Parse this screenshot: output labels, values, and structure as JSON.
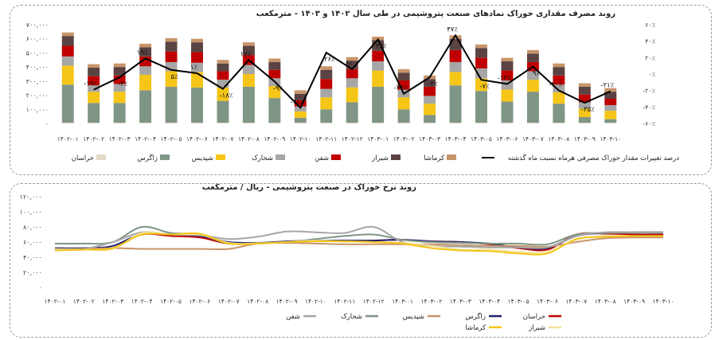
{
  "chart_data": [
    {
      "type": "bar",
      "stacked": true,
      "title": "روند مصرف مقداری خوراک نمادهای صنعت پتروشیمی در طی سال ۱۴۰۲ و ۱۴۰۳ - مترمکعب",
      "categories": [
        "۱۴۰۲-۰۱",
        "۱۴۰۲-۰۲",
        "۱۴۰۲-۰۳",
        "۱۴۰۲-۰۴",
        "۱۴۰۲-۰۵",
        "۱۴۰۲-۰۶",
        "۱۴۰۲-۰۷",
        "۱۴۰۲-۰۸",
        "۱۴۰۲-۰۹",
        "۱۴۰۲-۱۰",
        "۱۴۰۲-۱۱",
        "۱۴۰۲-۱۲",
        "۱۴۰۳-۰۱",
        "۱۴۰۳-۰۲",
        "۱۴۰۳-۰۳",
        "۱۴۰۳-۰۴",
        "۱۴۰۳-۰۵",
        "۱۴۰۳-۰۶",
        "۱۴۰۳-۰۷",
        "۱۴۰۳-۰۸",
        "۱۴۰۳-۰۹",
        "۱۴۰۳-۱۰"
      ],
      "y_ticks": [
        "۰",
        "۱۰۰,۰۰۰",
        "۲۰۰,۰۰۰",
        "۳۰۰,۰۰۰",
        "۴۰۰,۰۰۰",
        "۵۰۰,۰۰۰",
        "۶۰۰,۰۰۰",
        "۷۰۰,۰۰۰"
      ],
      "ylim": [
        0,
        700000
      ],
      "y2_ticks": [
        "-۶۰٪",
        "-۴۰٪",
        "-۲۰٪",
        "۰٪",
        "۲۰٪",
        "۴۰٪",
        "۶۰٪"
      ],
      "y2lim": [
        -60,
        60
      ],
      "series": [
        {
          "name": "خراسان",
          "color": "#e3d9c6",
          "values": [
            5000,
            5000,
            5000,
            5000,
            5000,
            5000,
            5000,
            5000,
            5000,
            5000,
            5000,
            5000,
            5000,
            5000,
            5000,
            5000,
            5000,
            5000,
            5000,
            5000,
            5000,
            5000
          ]
        },
        {
          "name": "زاگرس",
          "color": "#7f9585",
          "values": [
            270000,
            140000,
            140000,
            230000,
            255000,
            250000,
            155000,
            255000,
            175000,
            35000,
            95000,
            145000,
            255000,
            95000,
            55000,
            265000,
            225000,
            150000,
            220000,
            135000,
            40000,
            25000
          ]
        },
        {
          "name": "شپدیس",
          "color": "#f5c518",
          "values": [
            135000,
            80000,
            80000,
            110000,
            110000,
            110000,
            95000,
            90000,
            85000,
            45000,
            85000,
            105000,
            115000,
            85000,
            80000,
            95000,
            90000,
            85000,
            85000,
            80000,
            60000,
            60000
          ]
        },
        {
          "name": "شخارک",
          "color": "#a6a6a6",
          "values": [
            65000,
            45000,
            55000,
            60000,
            65000,
            65000,
            55000,
            65000,
            55000,
            35000,
            60000,
            65000,
            65000,
            55000,
            55000,
            70000,
            70000,
            65000,
            60000,
            55000,
            45000,
            40000
          ]
        },
        {
          "name": "شفن",
          "color": "#c00000",
          "values": [
            75000,
            65000,
            60000,
            70000,
            75000,
            75000,
            60000,
            70000,
            60000,
            45000,
            70000,
            65000,
            75000,
            65000,
            65000,
            85000,
            75000,
            70000,
            65000,
            65000,
            55000,
            45000
          ]
        },
        {
          "name": "شیراز",
          "color": "#5b4343",
          "values": [
            70000,
            60000,
            60000,
            65000,
            70000,
            70000,
            55000,
            65000,
            55000,
            45000,
            65000,
            60000,
            75000,
            55000,
            55000,
            80000,
            70000,
            65000,
            60000,
            60000,
            55000,
            50000
          ]
        },
        {
          "name": "کرماشا",
          "color": "#c8956a",
          "values": [
            25000,
            25000,
            25000,
            25000,
            25000,
            25000,
            25000,
            25000,
            25000,
            25000,
            25000,
            25000,
            25000,
            25000,
            25000,
            25000,
            25000,
            25000,
            25000,
            25000,
            25000,
            25000
          ]
        }
      ],
      "line_series": {
        "name": "درصد تغییرات مقدار خوراک مصرفی هرماه نسبت ماه گذشته",
        "color": "#000000",
        "values": [
          null,
          -19,
          -4,
          19,
          5,
          1,
          -18,
          17,
          -9,
          -41,
          26,
          6,
          42,
          -24,
          -4,
          47,
          -7,
          -12,
          9,
          -20,
          -35,
          -21
        ],
        "labels": [
          "",
          "-۱۹٪",
          "-۴٪",
          "۱۹٪",
          "۵٪",
          "۱٪",
          "-۱۸٪",
          "۱۷٪",
          "-۹٪",
          "-۴۱٪",
          "۲۶٪",
          "۶٪",
          "۴۲٪",
          "-۲۴٪",
          "-۴٪",
          "۴۷٪",
          "-۷٪",
          "-۱۲٪",
          "۹٪",
          "-۲۰٪",
          "-۳۵٪",
          "-۲۱٪"
        ]
      },
      "legend_position": "bottom"
    },
    {
      "type": "line",
      "title": "روند نرخ خوراک در صنعت پتروشیمی - ریال / مترمکعب",
      "categories": [
        "۱۴۰۲-۰۱",
        "۱۴۰۲-۰۲",
        "۱۴۰۲-۰۳",
        "۱۴۰۲-۰۴",
        "۱۴۰۲-۰۵",
        "۱۴۰۲-۰۶",
        "۱۴۰۲-۰۷",
        "۱۴۰۲-۰۸",
        "۱۴۰۲-۰۹",
        "۱۴۰۲-۱۰",
        "۱۴۰۲-۱۱",
        "۱۴۰۲-۱۲",
        "۱۴۰۳-۰۱",
        "۱۴۰۳-۰۲",
        "۱۴۰۳-۰۳",
        "۱۴۰۳-۰۴",
        "۱۴۰۳-۰۵",
        "۱۴۰۳-۰۶",
        "۱۴۰۳-۰۷",
        "۱۴۰۳-۰۸",
        "۱۴۰۳-۰۹",
        "۱۴۰۳-۱۰"
      ],
      "y_ticks": [
        "۰",
        "۲۰,۰۰۰",
        "۴۰,۰۰۰",
        "۶۰,۰۰۰",
        "۸۰,۰۰۰",
        "۱۰۰,۰۰۰",
        "۱۲۰,۰۰۰"
      ],
      "ylim": [
        0,
        120000
      ],
      "series": [
        {
          "name": "خراسان",
          "color": "#c00000",
          "values": [
            50000,
            50000,
            52000,
            70000,
            68000,
            66000,
            58000,
            58000,
            60000,
            62000,
            61000,
            62000,
            63000,
            61000,
            60000,
            57000,
            52000,
            50000,
            70000,
            71000,
            70000,
            70000
          ]
        },
        {
          "name": "زاگرس",
          "color": "#1f1f6e",
          "values": [
            52000,
            52000,
            55000,
            71000,
            70000,
            68000,
            60000,
            59000,
            61000,
            62000,
            62000,
            62000,
            63000,
            61000,
            60000,
            58000,
            53000,
            52000,
            68000,
            72000,
            73000,
            73000
          ]
        },
        {
          "name": "شپدیس",
          "color": "#c8956a",
          "values": [
            51000,
            51000,
            52000,
            51000,
            51000,
            51000,
            51000,
            58000,
            59000,
            58000,
            57000,
            57000,
            57000,
            57000,
            56000,
            55000,
            55000,
            54000,
            60000,
            65000,
            66000,
            66000
          ]
        },
        {
          "name": "شخارک",
          "color": "#7f9585",
          "values": [
            58000,
            58000,
            60000,
            80000,
            72000,
            70000,
            58000,
            59000,
            60000,
            64000,
            68000,
            70000,
            63000,
            60000,
            59000,
            58000,
            58000,
            57000,
            70000,
            72000,
            72000,
            72000
          ]
        },
        {
          "name": "شفن",
          "color": "#a6a6a6",
          "values": [
            51000,
            51000,
            60000,
            73000,
            70000,
            69000,
            64000,
            67000,
            74000,
            73000,
            72000,
            80000,
            60000,
            55000,
            54000,
            53000,
            53000,
            53000,
            68000,
            73000,
            73000,
            73000
          ]
        },
        {
          "name": "شیراز",
          "color": "#f3e3a0",
          "values": [
            50000,
            50000,
            51000,
            72000,
            70000,
            70000,
            59000,
            58000,
            60000,
            62000,
            61000,
            60000,
            59000,
            55000,
            50000,
            50000,
            47000,
            47000,
            63000,
            68000,
            68000,
            68000
          ]
        },
        {
          "name": "کرماشا",
          "color": "#f5c518",
          "values": [
            49000,
            50000,
            52000,
            70000,
            70000,
            71000,
            58000,
            58000,
            60000,
            61000,
            61000,
            60000,
            58000,
            52000,
            49000,
            48000,
            45000,
            45000,
            64000,
            67000,
            68000,
            68000
          ]
        }
      ],
      "legend_position": "bottom"
    }
  ]
}
